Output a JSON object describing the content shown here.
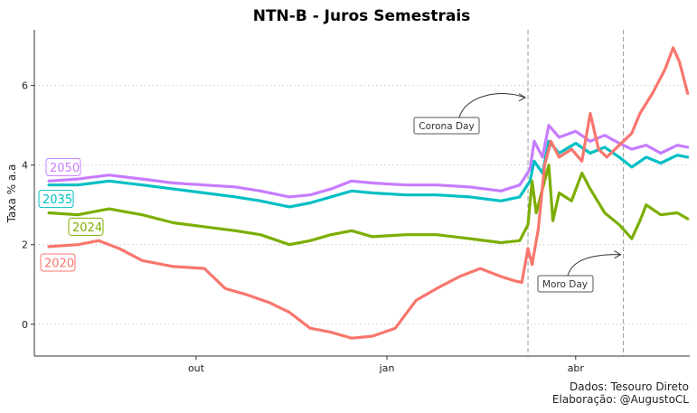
{
  "chart_data": {
    "type": "line",
    "title": "NTN-B - Juros Semestrais",
    "xlabel": "",
    "ylabel": "Taxa % a.a",
    "y_ticks": [
      0,
      2,
      4,
      6
    ],
    "ylim": [
      -0.8,
      7.4
    ],
    "xlim": [
      "2019-07-15",
      "2020-05-26"
    ],
    "x_ticks": [
      {
        "date": "2019-10-01",
        "label": "out"
      },
      {
        "date": "2020-01-01",
        "label": "jan"
      },
      {
        "date": "2020-04-01",
        "label": "abr"
      }
    ],
    "grid": "horizontal dotted",
    "legend": "inline labels at left",
    "series": [
      {
        "name": "2050",
        "color": "#C77CFF",
        "points": [
          [
            "2019-07-22",
            3.6
          ],
          [
            "2019-08-05",
            3.65
          ],
          [
            "2019-08-20",
            3.75
          ],
          [
            "2019-09-05",
            3.65
          ],
          [
            "2019-09-20",
            3.55
          ],
          [
            "2019-10-05",
            3.5
          ],
          [
            "2019-10-20",
            3.45
          ],
          [
            "2019-11-01",
            3.35
          ],
          [
            "2019-11-15",
            3.2
          ],
          [
            "2019-11-25",
            3.25
          ],
          [
            "2019-12-05",
            3.4
          ],
          [
            "2019-12-15",
            3.6
          ],
          [
            "2019-12-25",
            3.55
          ],
          [
            "2020-01-10",
            3.5
          ],
          [
            "2020-01-25",
            3.5
          ],
          [
            "2020-02-10",
            3.45
          ],
          [
            "2020-02-25",
            3.35
          ],
          [
            "2020-03-05",
            3.5
          ],
          [
            "2020-03-10",
            3.9
          ],
          [
            "2020-03-12",
            4.6
          ],
          [
            "2020-03-16",
            4.2
          ],
          [
            "2020-03-19",
            5.0
          ],
          [
            "2020-03-24",
            4.7
          ],
          [
            "2020-04-01",
            4.85
          ],
          [
            "2020-04-08",
            4.6
          ],
          [
            "2020-04-15",
            4.75
          ],
          [
            "2020-04-22",
            4.55
          ],
          [
            "2020-04-28",
            4.4
          ],
          [
            "2020-05-05",
            4.5
          ],
          [
            "2020-05-12",
            4.3
          ],
          [
            "2020-05-20",
            4.5
          ],
          [
            "2020-05-25",
            4.45
          ]
        ]
      },
      {
        "name": "2035",
        "color": "#00BFC4",
        "points": [
          [
            "2019-07-22",
            3.5
          ],
          [
            "2019-08-05",
            3.5
          ],
          [
            "2019-08-20",
            3.6
          ],
          [
            "2019-09-05",
            3.5
          ],
          [
            "2019-09-20",
            3.4
          ],
          [
            "2019-10-05",
            3.3
          ],
          [
            "2019-10-20",
            3.2
          ],
          [
            "2019-11-01",
            3.1
          ],
          [
            "2019-11-15",
            2.95
          ],
          [
            "2019-11-25",
            3.05
          ],
          [
            "2019-12-05",
            3.2
          ],
          [
            "2019-12-15",
            3.35
          ],
          [
            "2019-12-25",
            3.3
          ],
          [
            "2020-01-10",
            3.25
          ],
          [
            "2020-01-25",
            3.25
          ],
          [
            "2020-02-10",
            3.2
          ],
          [
            "2020-02-25",
            3.1
          ],
          [
            "2020-03-05",
            3.2
          ],
          [
            "2020-03-10",
            3.6
          ],
          [
            "2020-03-12",
            4.1
          ],
          [
            "2020-03-16",
            3.8
          ],
          [
            "2020-03-19",
            4.6
          ],
          [
            "2020-03-24",
            4.3
          ],
          [
            "2020-04-01",
            4.55
          ],
          [
            "2020-04-08",
            4.3
          ],
          [
            "2020-04-15",
            4.45
          ],
          [
            "2020-04-22",
            4.2
          ],
          [
            "2020-04-28",
            3.95
          ],
          [
            "2020-05-05",
            4.2
          ],
          [
            "2020-05-12",
            4.05
          ],
          [
            "2020-05-20",
            4.25
          ],
          [
            "2020-05-25",
            4.2
          ]
        ]
      },
      {
        "name": "2024",
        "color": "#7CAE00",
        "points": [
          [
            "2019-07-22",
            2.8
          ],
          [
            "2019-08-05",
            2.75
          ],
          [
            "2019-08-20",
            2.9
          ],
          [
            "2019-09-05",
            2.75
          ],
          [
            "2019-09-20",
            2.55
          ],
          [
            "2019-10-05",
            2.45
          ],
          [
            "2019-10-20",
            2.35
          ],
          [
            "2019-11-01",
            2.25
          ],
          [
            "2019-11-15",
            2.0
          ],
          [
            "2019-11-25",
            2.1
          ],
          [
            "2019-12-05",
            2.25
          ],
          [
            "2019-12-15",
            2.35
          ],
          [
            "2019-12-25",
            2.2
          ],
          [
            "2020-01-10",
            2.25
          ],
          [
            "2020-01-25",
            2.25
          ],
          [
            "2020-02-10",
            2.15
          ],
          [
            "2020-02-25",
            2.05
          ],
          [
            "2020-03-05",
            2.1
          ],
          [
            "2020-03-09",
            2.5
          ],
          [
            "2020-03-11",
            3.6
          ],
          [
            "2020-03-13",
            2.8
          ],
          [
            "2020-03-16",
            3.4
          ],
          [
            "2020-03-19",
            4.0
          ],
          [
            "2020-03-21",
            2.6
          ],
          [
            "2020-03-24",
            3.3
          ],
          [
            "2020-03-30",
            3.1
          ],
          [
            "2020-04-04",
            3.8
          ],
          [
            "2020-04-08",
            3.4
          ],
          [
            "2020-04-15",
            2.8
          ],
          [
            "2020-04-22",
            2.5
          ],
          [
            "2020-04-28",
            2.15
          ],
          [
            "2020-05-02",
            2.6
          ],
          [
            "2020-05-05",
            3.0
          ],
          [
            "2020-05-12",
            2.75
          ],
          [
            "2020-05-20",
            2.8
          ],
          [
            "2020-05-25",
            2.65
          ]
        ]
      },
      {
        "name": "2020",
        "color": "#F8766D",
        "points": [
          [
            "2019-07-22",
            1.95
          ],
          [
            "2019-08-05",
            2.0
          ],
          [
            "2019-08-15",
            2.1
          ],
          [
            "2019-08-25",
            1.9
          ],
          [
            "2019-09-05",
            1.6
          ],
          [
            "2019-09-20",
            1.45
          ],
          [
            "2019-10-05",
            1.4
          ],
          [
            "2019-10-15",
            0.9
          ],
          [
            "2019-10-25",
            0.75
          ],
          [
            "2019-11-05",
            0.55
          ],
          [
            "2019-11-15",
            0.3
          ],
          [
            "2019-11-25",
            -0.1
          ],
          [
            "2019-12-05",
            -0.2
          ],
          [
            "2019-12-15",
            -0.35
          ],
          [
            "2019-12-25",
            -0.3
          ],
          [
            "2020-01-05",
            -0.1
          ],
          [
            "2020-01-15",
            0.6
          ],
          [
            "2020-01-25",
            0.9
          ],
          [
            "2020-02-05",
            1.2
          ],
          [
            "2020-02-15",
            1.4
          ],
          [
            "2020-02-25",
            1.2
          ],
          [
            "2020-03-02",
            1.1
          ],
          [
            "2020-03-06",
            1.05
          ],
          [
            "2020-03-09",
            1.9
          ],
          [
            "2020-03-11",
            1.5
          ],
          [
            "2020-03-14",
            2.4
          ],
          [
            "2020-03-17",
            4.0
          ],
          [
            "2020-03-20",
            4.6
          ],
          [
            "2020-03-24",
            4.2
          ],
          [
            "2020-03-30",
            4.4
          ],
          [
            "2020-04-04",
            4.1
          ],
          [
            "2020-04-08",
            5.3
          ],
          [
            "2020-04-12",
            4.4
          ],
          [
            "2020-04-16",
            4.2
          ],
          [
            "2020-04-22",
            4.5
          ],
          [
            "2020-04-28",
            4.8
          ],
          [
            "2020-05-02",
            5.3
          ],
          [
            "2020-05-08",
            5.8
          ],
          [
            "2020-05-14",
            6.4
          ],
          [
            "2020-05-18",
            6.95
          ],
          [
            "2020-05-21",
            6.6
          ],
          [
            "2020-05-25",
            5.8
          ]
        ]
      }
    ],
    "annotations": [
      {
        "name": "corona-day",
        "date": "2020-03-09",
        "text": "Corona Day",
        "arrow_to_y": 5.7
      },
      {
        "name": "moro-day",
        "date": "2020-04-24",
        "text": "Moro Day",
        "arrow_to_y": 1.75
      }
    ]
  },
  "caption": {
    "line1": "Dados: Tesouro Direto",
    "line2": "Elaboração: @AugustoCL"
  }
}
